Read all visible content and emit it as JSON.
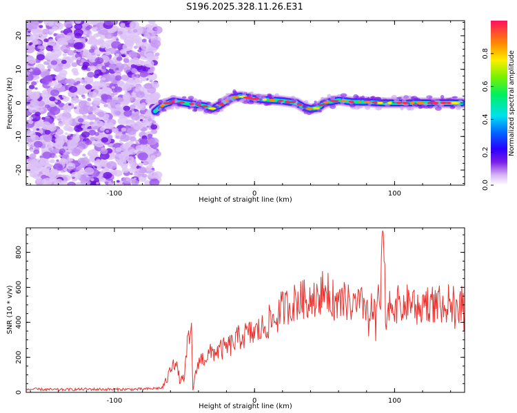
{
  "title": "S196.2025.328.11.26.E31",
  "chart_data": [
    {
      "type": "heatmap",
      "xlabel": "Height of straight line (km)",
      "ylabel": "Frequency (Hz)",
      "xlim": [
        -163,
        150
      ],
      "ylim": [
        -24.5,
        24.5
      ],
      "xticks": [
        -100,
        0,
        100
      ],
      "xtick_labels": [
        "-100",
        "0",
        "100"
      ],
      "yticks": [
        -20,
        -10,
        0,
        10,
        20
      ],
      "ytick_labels": [
        "-20",
        "-10",
        "0",
        "10",
        "20"
      ],
      "noise_region_x": [
        -163,
        -72
      ],
      "ridge": {
        "x": [
          -71,
          -65,
          -58,
          -50,
          -42,
          -35,
          -30,
          -25,
          -20,
          -15,
          -10,
          -5,
          0,
          10,
          20,
          30,
          35,
          40,
          45,
          50,
          60,
          70,
          80,
          90,
          100,
          110,
          120,
          130,
          140,
          148
        ],
        "freq": [
          -2.5,
          -0.5,
          0.5,
          0.0,
          -0.5,
          -1.0,
          -1.7,
          -0.8,
          0.6,
          1.6,
          2.0,
          1.6,
          1.2,
          0.9,
          0.6,
          0.0,
          -1.2,
          -1.8,
          -1.5,
          0.0,
          0.8,
          0.3,
          0.3,
          0.0,
          0.0,
          0.0,
          0.0,
          0.0,
          0.0,
          0.0
        ]
      },
      "colorbar": {
        "label": "Normalized spectral amplitude",
        "range": [
          0.0,
          1.0
        ],
        "ticks": [
          0.0,
          0.2,
          0.4,
          0.6,
          0.8
        ],
        "tick_labels": [
          "0.0",
          "0.2",
          "0.4",
          "0.6",
          "0.8"
        ]
      }
    },
    {
      "type": "line",
      "xlabel": "Height of straight line (km)",
      "ylabel": "SNR (10 * v/v)",
      "xlim": [
        -163,
        150
      ],
      "ylim": [
        0,
        940
      ],
      "xticks": [
        -100,
        0,
        100
      ],
      "xtick_labels": [
        "-100",
        "0",
        "100"
      ],
      "yticks": [
        0,
        200,
        400,
        600,
        800
      ],
      "ytick_labels": [
        "0",
        "200",
        "400",
        "600",
        "800"
      ],
      "color": "#e8302c",
      "series": [
        {
          "name": "SNR",
          "x": [
            -163,
            -140,
            -120,
            -100,
            -80,
            -66,
            -62,
            -58,
            -55,
            -53,
            -50,
            -48,
            -45,
            -44,
            -42,
            -40,
            -35,
            -30,
            -25,
            -20,
            -15,
            -10,
            -5,
            0,
            5,
            10,
            15,
            20,
            25,
            30,
            40,
            45,
            50,
            55,
            60,
            65,
            70,
            80,
            90,
            92,
            94,
            96,
            100,
            110,
            120,
            130,
            140,
            150
          ],
          "values": [
            18,
            15,
            18,
            17,
            18,
            25,
            80,
            190,
            130,
            60,
            90,
            260,
            340,
            20,
            100,
            180,
            200,
            230,
            240,
            255,
            280,
            320,
            330,
            340,
            360,
            400,
            420,
            480,
            500,
            520,
            540,
            560,
            580,
            540,
            500,
            520,
            490,
            500,
            520,
            940,
            300,
            520,
            500,
            510,
            520,
            500,
            510,
            500
          ]
        }
      ]
    }
  ]
}
